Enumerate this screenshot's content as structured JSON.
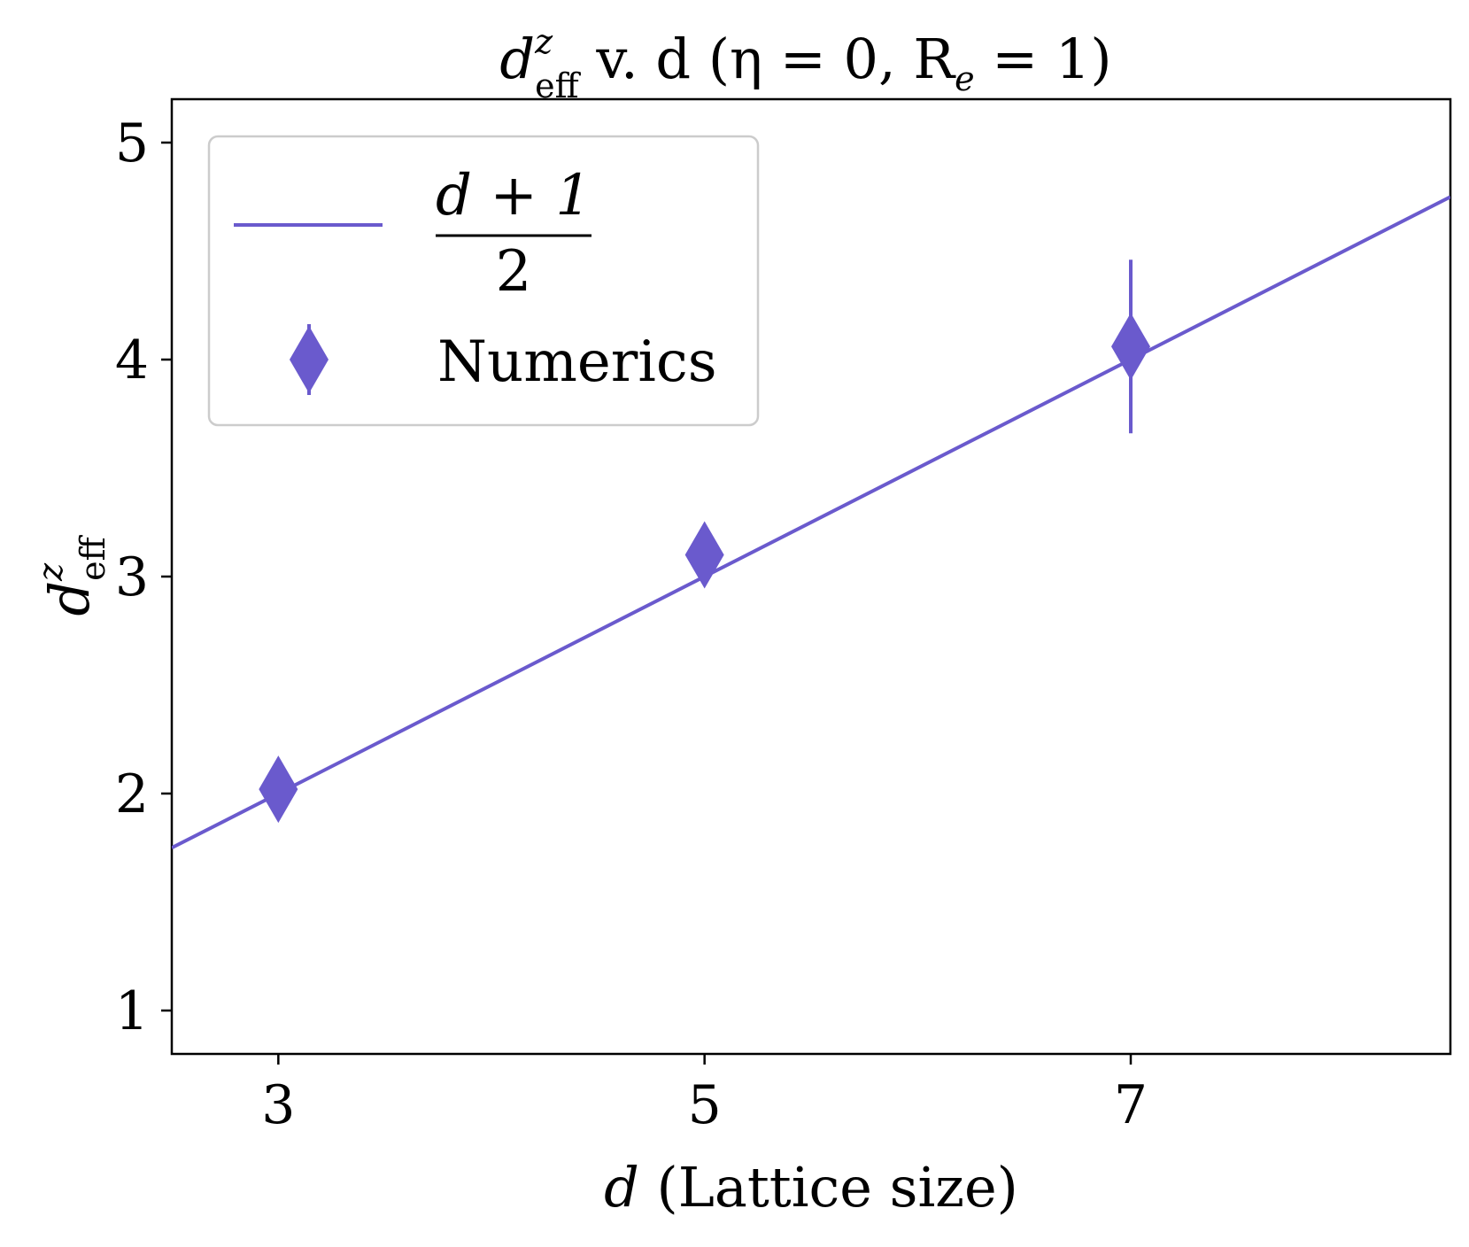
{
  "chart_data": {
    "type": "scatter",
    "title": {
      "main": "d",
      "sup": "z",
      "sub": "eff",
      "rest": " v. d (η = 0, R",
      "sub2": "e",
      "tail": " = 1)"
    },
    "xlabel": {
      "var": "d",
      "text": " (Lattice size)"
    },
    "ylabel": {
      "main": "d",
      "sup": "z",
      "sub": "eff"
    },
    "xlim": [
      2.5,
      8.5
    ],
    "ylim": [
      0.8,
      5.2
    ],
    "xticks": [
      3,
      5,
      7
    ],
    "xtick_labels": [
      "3",
      "5",
      "7"
    ],
    "yticks": [
      1,
      2,
      3,
      4,
      5
    ],
    "ytick_labels": [
      "1",
      "2",
      "3",
      "4",
      "5"
    ],
    "grid": false,
    "legend_position": "upper-left",
    "series": [
      {
        "name": "(d + 1) / 2",
        "kind": "line",
        "legend_numerator": "d + 1",
        "legend_denominator": "2",
        "x": [
          2.5,
          8.5
        ],
        "y": [
          1.75,
          4.75
        ]
      },
      {
        "name": "Numerics",
        "kind": "errorbar-diamond",
        "x": [
          3,
          5,
          7
        ],
        "y": [
          2.02,
          3.1,
          4.06
        ],
        "yerr": [
          0.0,
          0.0,
          0.4
        ]
      }
    ],
    "color": "#6a5acd"
  }
}
